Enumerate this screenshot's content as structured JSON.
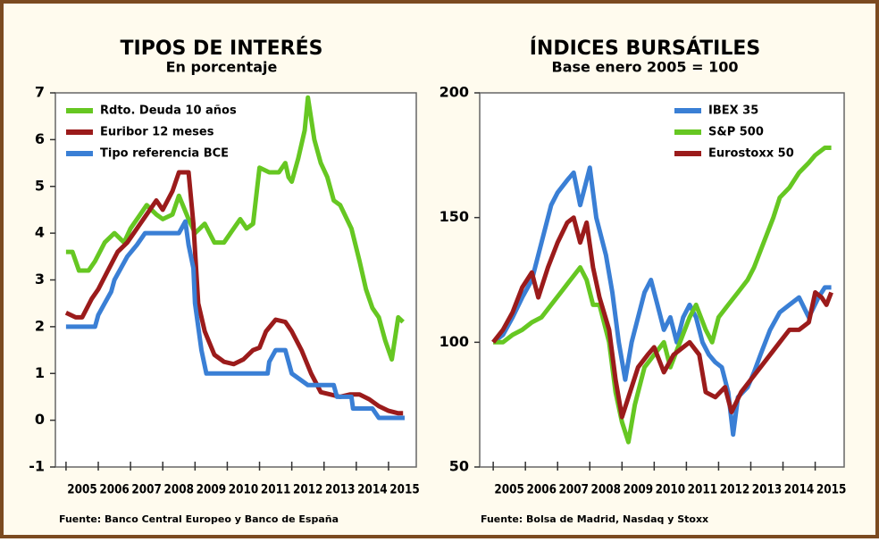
{
  "chart_data": [
    {
      "type": "line",
      "title": "TIPOS DE INTERÉS",
      "subtitle": "En porcentaje",
      "source": "Fuente: Banco Central Europeo y Banco de España",
      "xlim": [
        2004.67,
        2015.86
      ],
      "xticks": [
        2005,
        2006,
        2007,
        2008,
        2009,
        2010,
        2011,
        2012,
        2013,
        2014,
        2015
      ],
      "ylim": [
        -1,
        7
      ],
      "yticks": [
        -1,
        0,
        1,
        2,
        3,
        4,
        5,
        6,
        7
      ],
      "legend": "upper left",
      "series": [
        {
          "name": "Rdto. Deuda 10 años",
          "color": "#66c722",
          "x": [
            2005.0,
            2005.2,
            2005.4,
            2005.7,
            2005.9,
            2006.2,
            2006.5,
            2006.8,
            2007.0,
            2007.3,
            2007.5,
            2007.8,
            2008.0,
            2008.3,
            2008.5,
            2008.8,
            2009.0,
            2009.3,
            2009.6,
            2009.9,
            2010.1,
            2010.4,
            2010.6,
            2010.8,
            2011.0,
            2011.3,
            2011.6,
            2011.8,
            2011.9,
            2012.0,
            2012.2,
            2012.4,
            2012.5,
            2012.7,
            2012.9,
            2013.1,
            2013.3,
            2013.5,
            2013.85,
            2014.1,
            2014.3,
            2014.5,
            2014.7,
            2014.9,
            2015.1,
            2015.3,
            2015.45
          ],
          "values": [
            3.6,
            3.6,
            3.2,
            3.2,
            3.4,
            3.8,
            4.0,
            3.8,
            4.1,
            4.4,
            4.6,
            4.4,
            4.3,
            4.4,
            4.8,
            4.3,
            4.0,
            4.2,
            3.8,
            3.8,
            4.0,
            4.3,
            4.1,
            4.2,
            5.4,
            5.3,
            5.3,
            5.5,
            5.2,
            5.1,
            5.6,
            6.2,
            6.9,
            6.0,
            5.5,
            5.2,
            4.7,
            4.6,
            4.1,
            3.4,
            2.8,
            2.4,
            2.2,
            1.7,
            1.3,
            2.2,
            2.1
          ]
        },
        {
          "name": "Euribor 12 meses",
          "color": "#9b1b1b",
          "x": [
            2005.0,
            2005.3,
            2005.5,
            2005.8,
            2006.0,
            2006.3,
            2006.6,
            2006.9,
            2007.2,
            2007.5,
            2007.8,
            2008.0,
            2008.3,
            2008.5,
            2008.8,
            2008.95,
            2009.1,
            2009.3,
            2009.6,
            2009.9,
            2010.2,
            2010.5,
            2010.8,
            2011.0,
            2011.2,
            2011.5,
            2011.8,
            2012.0,
            2012.3,
            2012.6,
            2012.9,
            2013.2,
            2013.5,
            2013.8,
            2014.1,
            2014.4,
            2014.7,
            2015.0,
            2015.3,
            2015.45
          ],
          "values": [
            2.3,
            2.2,
            2.2,
            2.6,
            2.8,
            3.2,
            3.6,
            3.8,
            4.1,
            4.4,
            4.7,
            4.5,
            4.9,
            5.3,
            5.3,
            4.2,
            2.5,
            1.9,
            1.4,
            1.25,
            1.2,
            1.3,
            1.5,
            1.55,
            1.9,
            2.15,
            2.1,
            1.9,
            1.5,
            1.0,
            0.6,
            0.55,
            0.5,
            0.55,
            0.55,
            0.45,
            0.3,
            0.2,
            0.15,
            0.15
          ]
        },
        {
          "name": "Tipo referencia BCE",
          "color": "#3a7fd5",
          "x": [
            2005.0,
            2005.9,
            2006.0,
            2006.2,
            2006.4,
            2006.5,
            2006.7,
            2006.9,
            2007.2,
            2007.45,
            2008.5,
            2008.7,
            2008.8,
            2008.95,
            2009.0,
            2009.2,
            2009.35,
            2011.25,
            2011.3,
            2011.5,
            2011.8,
            2011.9,
            2012.0,
            2012.5,
            2013.3,
            2013.4,
            2013.85,
            2013.9,
            2014.5,
            2014.7,
            2015.5
          ],
          "values": [
            2.0,
            2.0,
            2.25,
            2.5,
            2.75,
            3.0,
            3.25,
            3.5,
            3.75,
            4.0,
            4.0,
            4.25,
            3.75,
            3.25,
            2.5,
            1.5,
            1.0,
            1.0,
            1.25,
            1.5,
            1.5,
            1.25,
            1.0,
            0.75,
            0.75,
            0.5,
            0.5,
            0.25,
            0.25,
            0.05,
            0.05
          ]
        }
      ]
    },
    {
      "type": "line",
      "title": "ÍNDICES BURSÁTILES",
      "subtitle": "Base enero 2005 = 100",
      "source": "Fuente: Bolsa de Madrid, Nasdaq y Stoxx",
      "xlim": [
        2004.58,
        2015.9
      ],
      "xticks": [
        2005,
        2006,
        2007,
        2008,
        2009,
        2010,
        2011,
        2012,
        2013,
        2014,
        2015
      ],
      "ylim": [
        50,
        200
      ],
      "yticks": [
        50,
        100,
        150,
        200
      ],
      "legend": "upper right",
      "series": [
        {
          "name": "IBEX 35",
          "color": "#3a7fd5",
          "x": [
            2005.0,
            2005.3,
            2005.6,
            2005.9,
            2006.2,
            2006.5,
            2006.8,
            2007.0,
            2007.3,
            2007.5,
            2007.7,
            2007.9,
            2008.0,
            2008.2,
            2008.5,
            2008.7,
            2008.9,
            2009.1,
            2009.3,
            2009.5,
            2009.7,
            2009.9,
            2010.1,
            2010.3,
            2010.5,
            2010.7,
            2010.9,
            2011.1,
            2011.3,
            2011.5,
            2011.7,
            2011.9,
            2012.1,
            2012.3,
            2012.45,
            2012.6,
            2012.9,
            2013.1,
            2013.3,
            2013.6,
            2013.9,
            2014.2,
            2014.5,
            2014.8,
            2015.1,
            2015.3,
            2015.5
          ],
          "values": [
            100,
            103,
            110,
            118,
            125,
            140,
            155,
            160,
            165,
            168,
            155,
            165,
            170,
            150,
            135,
            120,
            100,
            85,
            100,
            110,
            120,
            125,
            115,
            105,
            110,
            100,
            110,
            115,
            110,
            100,
            95,
            92,
            90,
            80,
            63,
            78,
            82,
            88,
            95,
            105,
            112,
            115,
            118,
            110,
            118,
            122,
            122
          ]
        },
        {
          "name": "S&P 500",
          "color": "#66c722",
          "x": [
            2005.0,
            2005.3,
            2005.6,
            2005.9,
            2006.2,
            2006.5,
            2006.8,
            2007.1,
            2007.4,
            2007.7,
            2007.9,
            2008.1,
            2008.3,
            2008.6,
            2008.8,
            2009.0,
            2009.2,
            2009.4,
            2009.7,
            2010.0,
            2010.3,
            2010.5,
            2010.8,
            2011.1,
            2011.3,
            2011.6,
            2011.8,
            2012.0,
            2012.3,
            2012.6,
            2012.9,
            2013.1,
            2013.4,
            2013.7,
            2013.9,
            2014.2,
            2014.5,
            2014.8,
            2015.0,
            2015.3,
            2015.5
          ],
          "values": [
            100,
            100,
            103,
            105,
            108,
            110,
            115,
            120,
            125,
            130,
            125,
            115,
            115,
            100,
            80,
            68,
            60,
            75,
            90,
            95,
            100,
            90,
            100,
            110,
            115,
            105,
            100,
            110,
            115,
            120,
            125,
            130,
            140,
            150,
            158,
            162,
            168,
            172,
            175,
            178,
            178
          ]
        },
        {
          "name": "Eurostoxx 50",
          "color": "#9b1b1b",
          "x": [
            2005.0,
            2005.3,
            2005.6,
            2005.9,
            2006.2,
            2006.4,
            2006.7,
            2007.0,
            2007.3,
            2007.5,
            2007.7,
            2007.9,
            2008.1,
            2008.3,
            2008.6,
            2008.8,
            2009.0,
            2009.2,
            2009.5,
            2009.8,
            2010.0,
            2010.3,
            2010.6,
            2010.9,
            2011.1,
            2011.4,
            2011.6,
            2011.9,
            2012.2,
            2012.4,
            2012.7,
            2013.0,
            2013.3,
            2013.6,
            2013.9,
            2014.2,
            2014.5,
            2014.8,
            2015.0,
            2015.2,
            2015.35,
            2015.5
          ],
          "values": [
            100,
            105,
            112,
            122,
            128,
            118,
            130,
            140,
            148,
            150,
            140,
            148,
            130,
            118,
            105,
            85,
            70,
            78,
            90,
            95,
            98,
            88,
            95,
            98,
            100,
            95,
            80,
            78,
            82,
            72,
            80,
            85,
            90,
            95,
            100,
            105,
            105,
            108,
            120,
            118,
            115,
            120
          ]
        }
      ]
    }
  ]
}
